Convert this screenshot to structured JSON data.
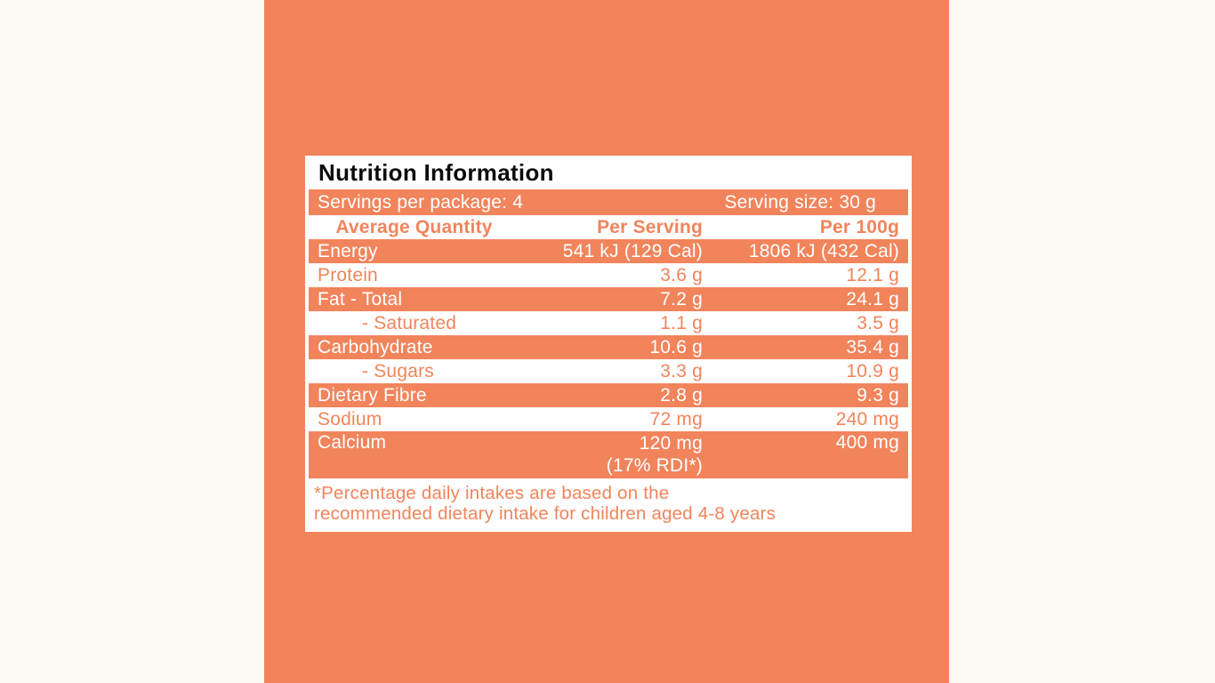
{
  "page": {
    "background_color": "#FDFAF2",
    "panel_color": "#F2845C",
    "text_on_coral_color": "#FFFFFF",
    "coral_text_color": "#F2845C"
  },
  "table": {
    "title": "Nutrition Information",
    "servings_row": {
      "left": "Servings per package: 4",
      "right": "Serving size: 30 g"
    },
    "header": {
      "col1": "Average Quantity",
      "col2": "Per Serving",
      "col3": "Per 100g"
    },
    "rows": [
      {
        "label": "Energy",
        "per_serving": "541 kJ (129 Cal)",
        "per_100g": "1806 kJ (432 Cal)"
      },
      {
        "label": "Protein",
        "per_serving": "3.6 g",
        "per_100g": "12.1 g"
      },
      {
        "label": "Fat - Total",
        "per_serving": "7.2 g",
        "per_100g": "24.1 g"
      },
      {
        "label": "- Saturated",
        "per_serving": "1.1 g",
        "per_100g": "3.5 g"
      },
      {
        "label": "Carbohydrate",
        "per_serving": "10.6 g",
        "per_100g": "35.4 g"
      },
      {
        "label": "- Sugars",
        "per_serving": "3.3 g",
        "per_100g": "10.9 g"
      },
      {
        "label": "Dietary Fibre",
        "per_serving": "2.8 g",
        "per_100g": "9.3 g"
      },
      {
        "label": "Sodium",
        "per_serving": "72 mg",
        "per_100g": "240 mg"
      },
      {
        "label": "Calcium",
        "per_serving": "120 mg",
        "per_serving_note": "(17% RDI*)",
        "per_100g": "400 mg"
      }
    ],
    "footnote_line1": "*Percentage daily intakes are based on the",
    "footnote_line2": "recommended dietary intake for children aged 4-8 years"
  }
}
